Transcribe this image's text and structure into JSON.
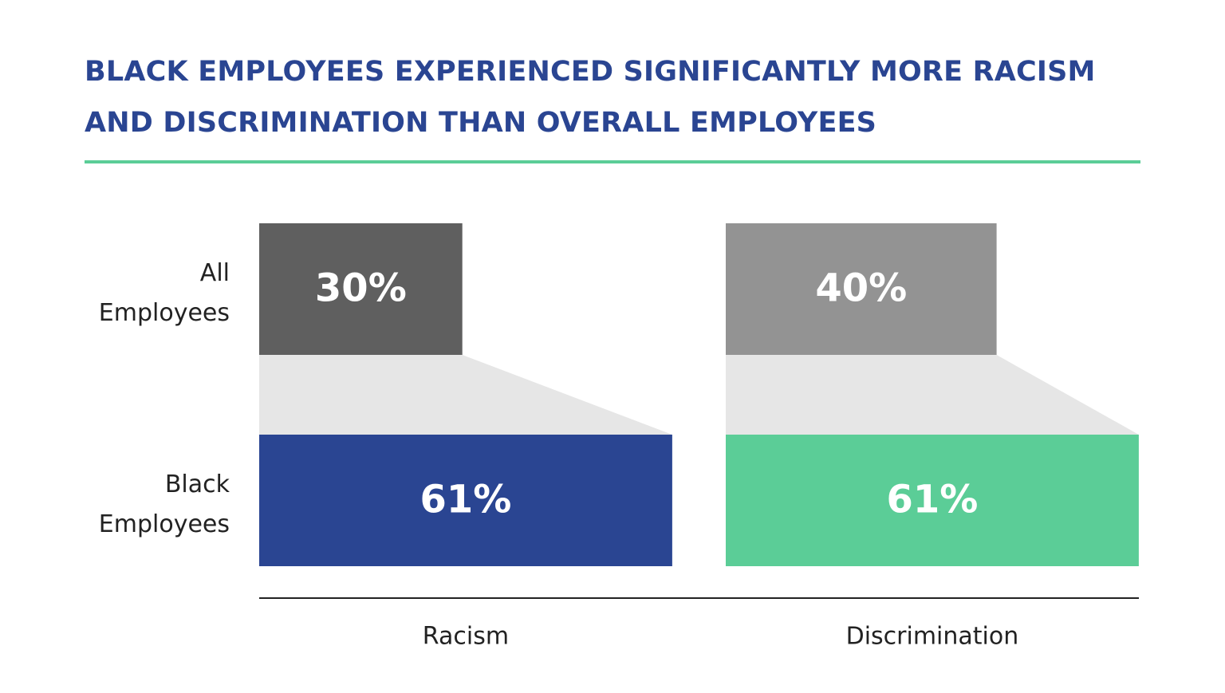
{
  "chart_data": {
    "type": "bar",
    "title": "BLACK EMPLOYEES EXPERIENCED SIGNIFICANTLY MORE RACISM AND DISCRIMINATION THAN OVERALL EMPLOYEES",
    "categories": [
      "Racism",
      "Discrimination"
    ],
    "series": [
      {
        "name": "All Employees",
        "colors": [
          "#5f5f5f",
          "#939393"
        ],
        "values": [
          30,
          40
        ],
        "value_labels": [
          "30%",
          "40%"
        ]
      },
      {
        "name": "Black Employees",
        "colors": [
          "#2a4592",
          "#5bcd97"
        ],
        "values": [
          61,
          61
        ],
        "value_labels": [
          "61%",
          "61%"
        ]
      }
    ]
  }
}
